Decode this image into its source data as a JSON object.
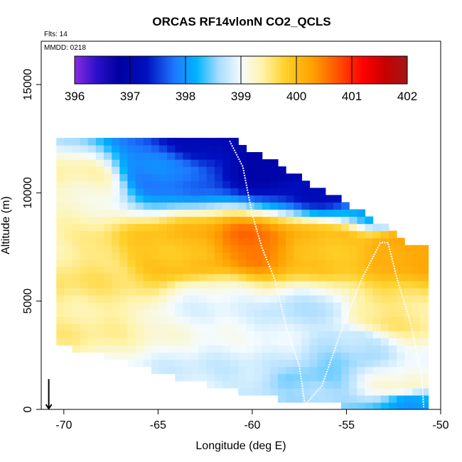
{
  "chart_data": {
    "type": "heatmap",
    "title": "ORCAS RF14vlonN CO2_QCLS",
    "xlabel": "Longitude (deg E)",
    "ylabel": "Altitude (m)",
    "xlim": [
      -71.2,
      -50
    ],
    "ylim": [
      0,
      17000
    ],
    "xticks": [
      "-70",
      "-65",
      "-60",
      "-55",
      "-50"
    ],
    "xtick_values": [
      -70,
      -65,
      -60,
      -55,
      -50
    ],
    "yticks": [
      "0",
      "5000",
      "10000",
      "15000"
    ],
    "ytick_values": [
      0,
      5000,
      10000,
      15000
    ],
    "annotations": {
      "flights": "Flts: 14",
      "mmdd": "MMDD: 0218"
    },
    "colorbar": {
      "min": 396,
      "max": 402,
      "ticks": [
        "396",
        "397",
        "398",
        "399",
        "400",
        "401",
        "402"
      ],
      "tick_values": [
        396,
        397,
        398,
        399,
        400,
        401,
        402
      ],
      "stops": [
        {
          "v": 396.0,
          "c": "#8a2be2"
        },
        {
          "v": 396.4,
          "c": "#2a10c8"
        },
        {
          "v": 396.8,
          "c": "#0000a0"
        },
        {
          "v": 397.3,
          "c": "#0010c0"
        },
        {
          "v": 397.8,
          "c": "#1e78ff"
        },
        {
          "v": 398.2,
          "c": "#00b4ff"
        },
        {
          "v": 398.6,
          "c": "#a8dcff"
        },
        {
          "v": 399.0,
          "c": "#f4fbff"
        },
        {
          "v": 399.4,
          "c": "#fff3a8"
        },
        {
          "v": 399.8,
          "c": "#ffd028"
        },
        {
          "v": 400.3,
          "c": "#ffa000"
        },
        {
          "v": 400.8,
          "c": "#ff4800"
        },
        {
          "v": 401.2,
          "c": "#ff0000"
        },
        {
          "v": 401.6,
          "c": "#c80000"
        },
        {
          "v": 402.0,
          "c": "#a01818"
        }
      ]
    },
    "curtain": {
      "lon_range": [
        -70.4,
        -50.8
      ],
      "alt_range": [
        0,
        12500
      ],
      "bottom_edge": [
        [
          -70.5,
          3000
        ],
        [
          -68,
          2500
        ],
        [
          -66,
          2000
        ],
        [
          -64,
          1500
        ],
        [
          -62,
          1000
        ],
        [
          -59,
          600
        ],
        [
          -57.5,
          300
        ],
        [
          -55,
          150
        ],
        [
          -51,
          150
        ],
        [
          -50.8,
          0
        ]
      ],
      "top_edge": [
        [
          -70.3,
          12500
        ],
        [
          -66,
          12500
        ],
        [
          -61.2,
          12500
        ],
        [
          -59,
          11500
        ],
        [
          -57,
          10500
        ],
        [
          -55,
          9500
        ],
        [
          -53,
          8500
        ],
        [
          -51.5,
          7500
        ]
      ],
      "features": [
        {
          "lon": -60,
          "alt": 7500,
          "v": 400.6
        },
        {
          "lon": -64,
          "alt": 7200,
          "v": 400.0
        },
        {
          "lon": -56,
          "alt": 7600,
          "v": 400.0
        },
        {
          "lon": -52,
          "alt": 7500,
          "v": 400.3
        },
        {
          "lon": -65,
          "alt": 11000,
          "v": 397.8
        },
        {
          "lon": -62,
          "alt": 12200,
          "v": 397.2
        },
        {
          "lon": -59,
          "alt": 11400,
          "v": 396.8
        },
        {
          "lon": -56,
          "alt": 10200,
          "v": 397.3
        },
        {
          "lon": -53,
          "alt": 9200,
          "v": 398.0
        },
        {
          "lon": -69,
          "alt": 10500,
          "v": 399.3
        },
        {
          "lon": -68,
          "alt": 5500,
          "v": 399.5
        },
        {
          "lon": -62,
          "alt": 5000,
          "v": 399.0
        },
        {
          "lon": -57,
          "alt": 4500,
          "v": 398.8
        },
        {
          "lon": -53,
          "alt": 4500,
          "v": 399.6
        },
        {
          "lon": -55,
          "alt": 3000,
          "v": 398.6
        },
        {
          "lon": -60,
          "alt": 2500,
          "v": 398.9
        },
        {
          "lon": -57,
          "alt": 800,
          "v": 398.5
        },
        {
          "lon": -52,
          "alt": 1200,
          "v": 399.2
        },
        {
          "lon": -51.5,
          "alt": 300,
          "v": 398.0
        }
      ],
      "flight_track": [
        [
          -61.2,
          12400
        ],
        [
          -60.5,
          11200
        ],
        [
          -60,
          9000
        ],
        [
          -59.5,
          7500
        ],
        [
          -58.8,
          6000
        ],
        [
          -58.2,
          3800
        ],
        [
          -57.5,
          2000
        ],
        [
          -57.2,
          200
        ],
        [
          -56.3,
          1100
        ],
        [
          -55.2,
          3800
        ],
        [
          -54.2,
          6000
        ],
        [
          -53.2,
          7700
        ],
        [
          -52.8,
          7700
        ],
        [
          -52.3,
          6000
        ],
        [
          -51.6,
          4000
        ],
        [
          -51,
          1500
        ],
        [
          -50.9,
          100
        ]
      ]
    },
    "arrow_marker": {
      "lon": -70.8,
      "alt": 500,
      "direction": "down"
    }
  }
}
